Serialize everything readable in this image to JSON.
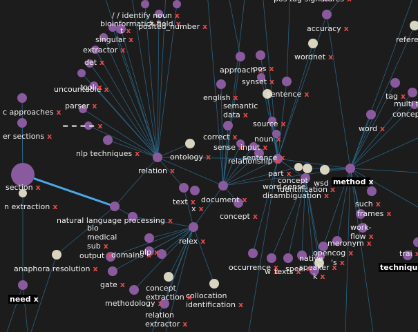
{
  "colors": {
    "background": "#1c1c1c",
    "node_purple": "#8a5a9e",
    "node_beige": "#d8d4c0",
    "edge": "#2e6f94",
    "edge_highlight": "#4aa8e8",
    "remove_x": "#e84a4a"
  },
  "remove_symbol": "x",
  "graph": {
    "nodes": [
      {
        "id": "identify_noun",
        "label": "/ / identify noun",
        "color": "purple"
      },
      {
        "id": "pos_tag_signatures",
        "label": "pos tag signatures",
        "color": "purple"
      },
      {
        "id": "s_top",
        "label": "s",
        "color": "purple"
      },
      {
        "id": "bioinformatics_field",
        "label": "bioinformatics field",
        "color": "purple"
      },
      {
        "id": "posited_number",
        "label": "posited_number",
        "color": "purple"
      },
      {
        "id": "t",
        "label": "t",
        "color": "purple"
      },
      {
        "id": "singular",
        "label": "singular",
        "color": "purple"
      },
      {
        "id": "extractor",
        "label": "extractor",
        "color": "purple"
      },
      {
        "id": "det",
        "label": "det",
        "color": "purple"
      },
      {
        "id": "uncountable",
        "label": "uncountable",
        "color": "purple"
      },
      {
        "id": "tool",
        "label": "tool",
        "color": "purple"
      },
      {
        "id": "parser",
        "label": "parser",
        "color": "purple"
      },
      {
        "id": "approaches",
        "label": "c approaches",
        "color": "purple"
      },
      {
        "id": "equals",
        "label": "= = = =",
        "color": "purple"
      },
      {
        "id": "sections",
        "label": "er sections",
        "color": "purple"
      },
      {
        "id": "nlp_techniques",
        "label": "nlp techniques",
        "color": "purple"
      },
      {
        "id": "section",
        "label": "section",
        "color": "purple"
      },
      {
        "id": "extraction_left",
        "label": "n extraction",
        "color": "beige"
      },
      {
        "id": "relation",
        "label": "relation",
        "color": "purple"
      },
      {
        "id": "ontology",
        "label": "ontology",
        "color": "beige"
      },
      {
        "id": "accuracy",
        "label": "accuracy",
        "color": "purple"
      },
      {
        "id": "refere",
        "label": "refere",
        "color": "beige"
      },
      {
        "id": "wordnet",
        "label": "wordnet",
        "color": "beige"
      },
      {
        "id": "approach",
        "label": "approach",
        "color": "purple"
      },
      {
        "id": "pos",
        "label": "pos",
        "color": "purple"
      },
      {
        "id": "synset",
        "label": "synset",
        "color": "purple"
      },
      {
        "id": "sentence_top",
        "label": "sentence",
        "color": "purple"
      },
      {
        "id": "tag",
        "label": "tag",
        "color": "purple"
      },
      {
        "id": "multi_te",
        "label": "multi te",
        "color": "purple"
      },
      {
        "id": "concep_right",
        "label": "concep",
        "color": "purple"
      },
      {
        "id": "english",
        "label": "english",
        "color": "purple"
      },
      {
        "id": "semantic_data",
        "label": "semantic data",
        "color": "beige"
      },
      {
        "id": "word",
        "label": "word",
        "color": "purple"
      },
      {
        "id": "source",
        "label": "source",
        "color": "purple"
      },
      {
        "id": "noun",
        "label": "noun",
        "color": "purple"
      },
      {
        "id": "correct",
        "label": "correct",
        "color": "purple"
      },
      {
        "id": "sense",
        "label": "sense",
        "color": "purple"
      },
      {
        "id": "input",
        "label": "input",
        "color": "purple"
      },
      {
        "id": "relationship",
        "label": "relationship",
        "color": "purple"
      },
      {
        "id": "sentence_mid",
        "label": "sentence",
        "color": "purple"
      },
      {
        "id": "part",
        "label": "part",
        "color": "beige"
      },
      {
        "id": "concept_identification",
        "label": "concept identification",
        "color": "beige"
      },
      {
        "id": "word_sense_disambiguation",
        "label": "word sense disambiguation",
        "color": "purple"
      },
      {
        "id": "wsd",
        "label": "wsd",
        "color": "beige"
      },
      {
        "id": "method",
        "label": "method",
        "color": "purple"
      },
      {
        "id": "text",
        "label": "text",
        "color": "purple"
      },
      {
        "id": "x_node",
        "label": "x",
        "color": "purple"
      },
      {
        "id": "document",
        "label": "document",
        "color": "purple"
      },
      {
        "id": "concept_mid",
        "label": "concept",
        "color": "purple"
      },
      {
        "id": "such",
        "label": "such",
        "color": "purple"
      },
      {
        "id": "frames",
        "label": "frames",
        "color": "purple"
      },
      {
        "id": "nlp_processing",
        "label": "natural language processing",
        "color": "purple"
      },
      {
        "id": "work_flow",
        "label": "work- flow",
        "color": "purple"
      },
      {
        "id": "bio_medical_sub",
        "label": "bio medical sub",
        "color": "purple"
      },
      {
        "id": "relex",
        "label": "relex",
        "color": "purple"
      },
      {
        "id": "meronym",
        "label": "meronym",
        "color": "purple"
      },
      {
        "id": "opencog",
        "label": "opencog",
        "color": "purple"
      },
      {
        "id": "trai",
        "label": "trai",
        "color": "purple"
      },
      {
        "id": "technique",
        "label": "technique",
        "color": "purple"
      },
      {
        "id": "output",
        "label": "output",
        "color": "purple"
      },
      {
        "id": "domains",
        "label": "domains",
        "color": "purple"
      },
      {
        "id": "nlp",
        "label": "nlp",
        "color": "purple"
      },
      {
        "id": "s_mid",
        "label": "'s",
        "color": "purple"
      },
      {
        "id": "anaphora_resolution",
        "label": "anaphora resolution",
        "color": "beige"
      },
      {
        "id": "occurrence",
        "label": "occurrence",
        "color": "purple"
      },
      {
        "id": "w",
        "label": "w",
        "color": "purple"
      },
      {
        "id": "native_speaker",
        "label": "native speaker",
        "color": "beige"
      },
      {
        "id": "texts",
        "label": "texts",
        "color": "purple"
      },
      {
        "id": "spee",
        "label": "spee",
        "color": "purple"
      },
      {
        "id": "k",
        "label": "k",
        "color": "purple"
      },
      {
        "id": "gate",
        "label": "gate",
        "color": "purple"
      },
      {
        "id": "concept_extraction",
        "label": "concept extraction",
        "color": "beige"
      },
      {
        "id": "collocation_identification",
        "label": "collocation identification",
        "color": "beige"
      },
      {
        "id": "methodology",
        "label": "methodology",
        "color": "purple"
      },
      {
        "id": "relation_extractor",
        "label": "relation extractor",
        "color": "purple"
      },
      {
        "id": "need",
        "label": "need",
        "color": "purple"
      }
    ],
    "highlighted_edge": {
      "from": "section",
      "to": "extraction_target"
    }
  }
}
